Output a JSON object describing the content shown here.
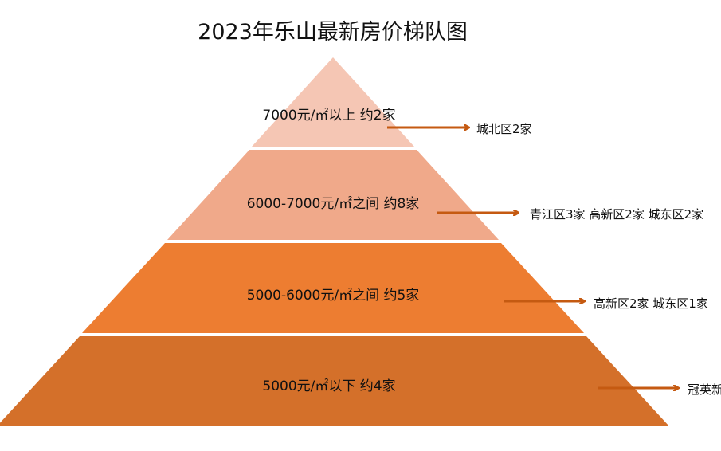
{
  "title": "2023年乐山最新房价梯队图",
  "tiers": [
    {
      "label": "7000元/㎡以上 约2家",
      "detail": "城北区2家",
      "color": "#f5c6b4"
    },
    {
      "label": "6000-7000元/㎡之间 约8家",
      "detail": "青江区3家 高新区2家 城东区2家",
      "color": "#f0a98a"
    },
    {
      "label": "5000-6000元/㎡之间 约5家",
      "detail": "高新区2家 城东区1家",
      "color": "#ed7d31"
    },
    {
      "label": "5000元/㎡以下 约4家",
      "detail": "冠英新",
      "color": "#d4702a"
    }
  ],
  "arrow_color": "#c55a11"
}
